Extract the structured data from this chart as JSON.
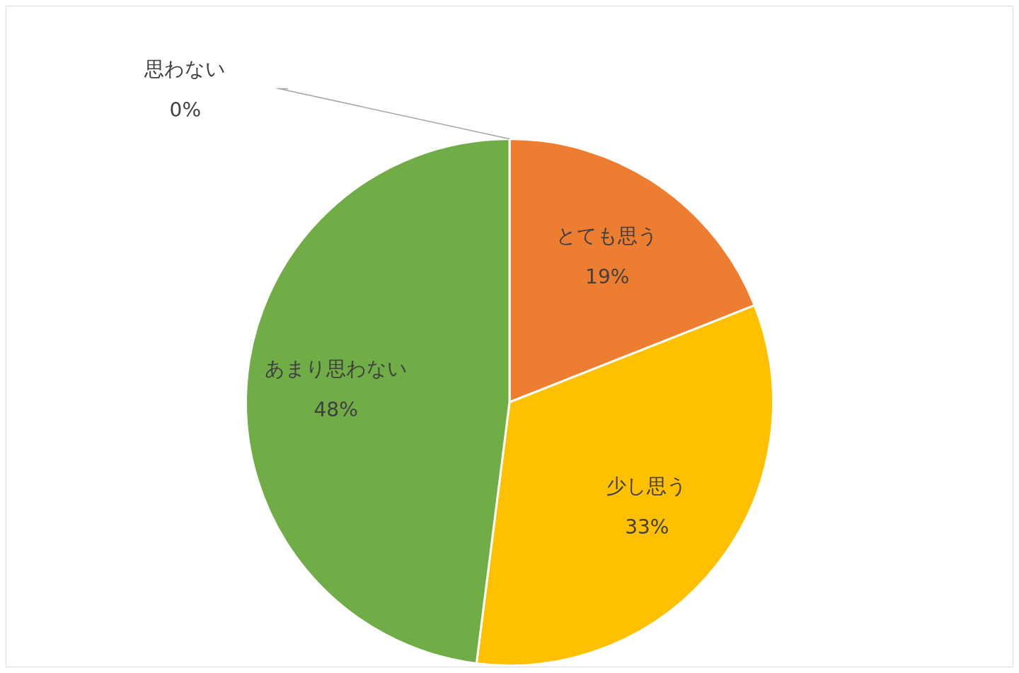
{
  "chart_data": {
    "type": "pie",
    "categories": [
      "とても思う",
      "少し思う",
      "あまり思わない",
      "思わない"
    ],
    "values": [
      19,
      33,
      48,
      0
    ],
    "colors": [
      "#ed7d31",
      "#ffc000",
      "#70ad47",
      "#4472c4"
    ],
    "value_labels": [
      "19%",
      "33%",
      "48%",
      "0%"
    ],
    "legend": false
  }
}
